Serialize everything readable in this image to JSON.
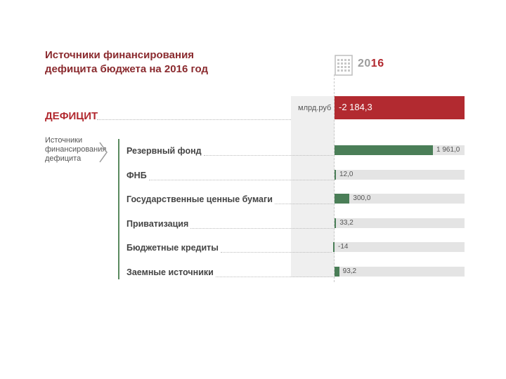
{
  "header": {
    "title_line1": "Источники финансирования",
    "title_line2": "дефицита бюджета на 2016 год",
    "year_prefix": "20",
    "year_suffix": "16"
  },
  "deficit": {
    "label": "ДЕФИЦИТ",
    "unit": "млрд.руб",
    "value_text": "-2 184,3"
  },
  "sources": {
    "label": "Источники финансирования дефицита"
  },
  "colors": {
    "deficit_red": "#b22a30",
    "title_red": "#8a2a2e",
    "bar_green": "#4a7e57",
    "track_gray": "#e4e4e4"
  },
  "chart_data": {
    "type": "bar",
    "orientation": "horizontal",
    "title": "Источники финансирования дефицита бюджета на 2016 год",
    "unit": "млрд.руб",
    "total": {
      "label": "ДЕФИЦИТ",
      "value": -2184.3,
      "value_text": "-2 184,3"
    },
    "categories": [
      "Резервный фонд",
      "ФНБ",
      "Государственные ценные бумаги",
      "Приватизация",
      "Бюджетные кредиты",
      "Заемные источники"
    ],
    "values": [
      1961.0,
      12.0,
      300.0,
      33.2,
      -14,
      93.2
    ],
    "value_labels": [
      "1 961,0",
      "12,0",
      "300,0",
      "33,2",
      "-14",
      "93,2"
    ],
    "xlim": [
      0,
      2500
    ]
  }
}
